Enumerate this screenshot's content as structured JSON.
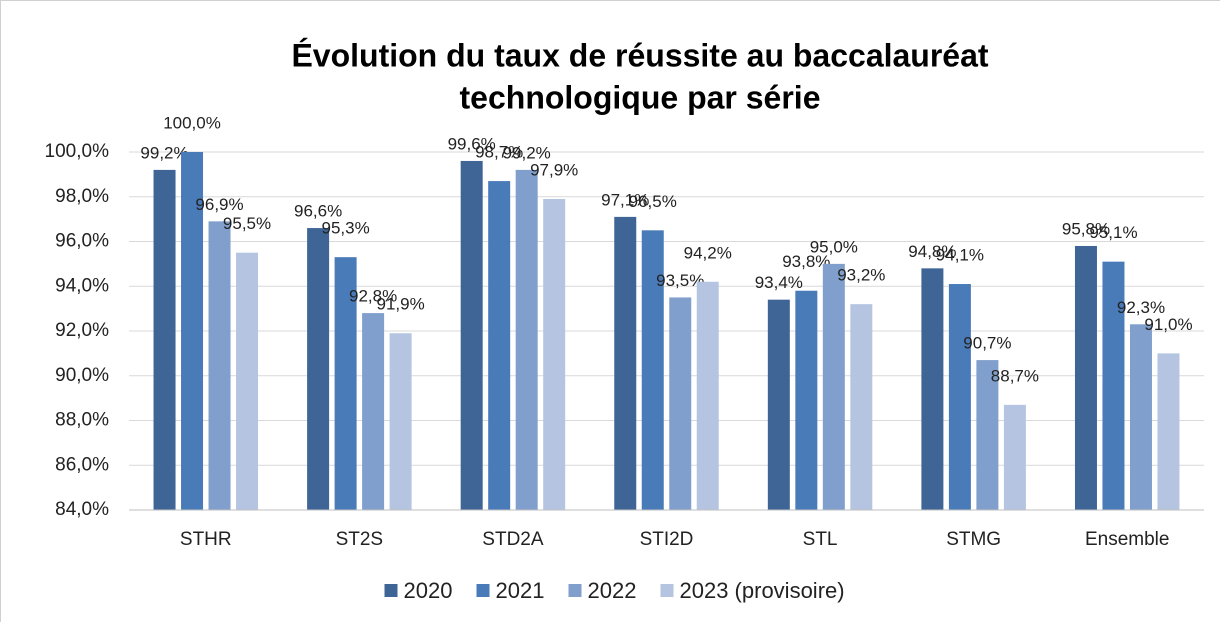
{
  "chart_data": {
    "type": "bar",
    "title": [
      "Évolution du taux de réussite au baccalauréat",
      "technologique par série"
    ],
    "categories": [
      "STHR",
      "ST2S",
      "STD2A",
      "STI2D",
      "STL",
      "STMG",
      "Ensemble"
    ],
    "series": [
      {
        "name": "2020",
        "color": "#3f6597",
        "values": [
          99.2,
          96.6,
          99.6,
          97.1,
          93.4,
          94.8,
          95.8
        ],
        "value_labels": [
          "99,2%",
          "96,6%",
          "99,6%",
          "97,1%",
          "93,4%",
          "94,8%",
          "95,8%"
        ]
      },
      {
        "name": "2021",
        "color": "#4a7bb9",
        "values": [
          100.0,
          95.3,
          98.7,
          96.5,
          93.8,
          94.1,
          95.1
        ],
        "value_labels": [
          "100,0%",
          "95,3%",
          "98,7%",
          "96,5%",
          "93,8%",
          "94,1%",
          "95,1%"
        ]
      },
      {
        "name": "2022",
        "color": "#809fcc",
        "values": [
          96.9,
          92.8,
          99.2,
          93.5,
          95.0,
          90.7,
          92.3
        ],
        "value_labels": [
          "96,9%",
          "92,8%",
          "99,2%",
          "93,5%",
          "95,0%",
          "90,7%",
          "92,3%"
        ]
      },
      {
        "name": "2023 (provisoire)",
        "color": "#b5c5e1",
        "values": [
          95.5,
          91.9,
          97.9,
          94.2,
          93.2,
          88.7,
          91.0
        ],
        "value_labels": [
          "95,5%",
          "91,9%",
          "97,9%",
          "94,2%",
          "93,2%",
          "88,7%",
          "91,0%"
        ]
      }
    ],
    "ylim": [
      84,
      100
    ],
    "yticks": [
      {
        "value": 84,
        "label": "84,0%"
      },
      {
        "value": 86,
        "label": "86,0%"
      },
      {
        "value": 88,
        "label": "88,0%"
      },
      {
        "value": 90,
        "label": "90,0%"
      },
      {
        "value": 92,
        "label": "92,0%"
      },
      {
        "value": 94,
        "label": "94,0%"
      },
      {
        "value": 96,
        "label": "96,0%"
      },
      {
        "value": 98,
        "label": "98,0%"
      },
      {
        "value": 100,
        "label": "100,0%"
      }
    ],
    "grid": true,
    "legend": "bottom"
  }
}
